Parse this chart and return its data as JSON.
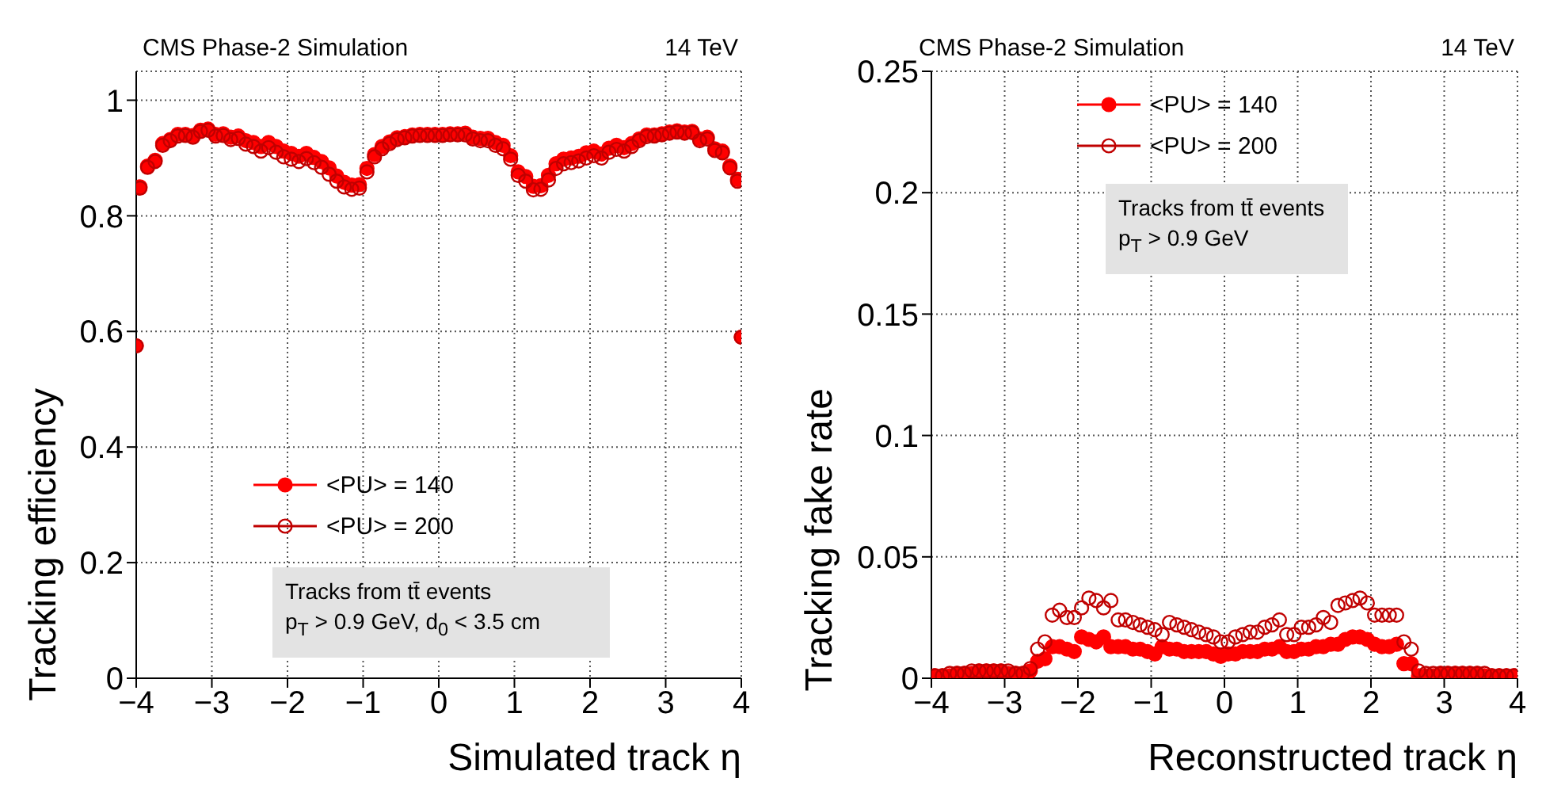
{
  "chart_data": [
    {
      "type": "scatter",
      "xlabel": "Simulated track η",
      "ylabel": "Tracking efficiency",
      "marker": "circle",
      "grid": true,
      "legend": "bottom left",
      "annotations": [
        "CMS Phase-2 Simulation",
        "14 TeV",
        "Tracks from tt̄ events",
        "p$_{T}$ > 0.9 GeV, d$_{0}$ < 3.5 cm"
      ],
      "x": [
        -4,
        -3.95,
        -3.85,
        -3.75,
        -3.65,
        -3.55,
        -3.45,
        -3.35,
        -3.25,
        -3.15,
        -3.05,
        -2.95,
        -2.85,
        -2.75,
        -2.65,
        -2.55,
        -2.45,
        -2.35,
        -2.25,
        -2.15,
        -2.05,
        -1.95,
        -1.85,
        -1.75,
        -1.65,
        -1.55,
        -1.45,
        -1.35,
        -1.25,
        -1.15,
        -1.05,
        -0.95,
        -0.85,
        -0.75,
        -0.65,
        -0.55,
        -0.45,
        -0.35,
        -0.25,
        -0.15,
        -0.05,
        0.05,
        0.15,
        0.25,
        0.35,
        0.45,
        0.55,
        0.65,
        0.75,
        0.85,
        0.95,
        1.05,
        1.15,
        1.25,
        1.35,
        1.45,
        1.55,
        1.65,
        1.75,
        1.85,
        1.95,
        2.05,
        2.15,
        2.25,
        2.35,
        2.45,
        2.55,
        2.65,
        2.75,
        2.85,
        2.95,
        3.05,
        3.15,
        3.25,
        3.35,
        3.45,
        3.55,
        3.65,
        3.75,
        3.85,
        3.95,
        4
      ],
      "xlim": [
        -4,
        4
      ],
      "xticks": [
        {
          "value": -4,
          "label": "−4"
        },
        {
          "value": -3,
          "label": "−3"
        },
        {
          "value": -2,
          "label": "−2"
        },
        {
          "value": -1,
          "label": "−1"
        },
        0,
        1,
        2,
        3,
        4
      ],
      "ylim": [
        0,
        1.05
      ],
      "yticks": [
        0,
        0.2,
        0.4,
        0.6,
        0.8,
        1
      ],
      "series": [
        {
          "name": "<PU> = 140",
          "color": "#ff0000",
          "values": [
            0.575,
            0.85,
            0.886,
            0.896,
            0.925,
            0.932,
            0.941,
            0.941,
            0.939,
            0.948,
            0.95,
            0.941,
            0.942,
            0.936,
            0.938,
            0.93,
            0.927,
            0.92,
            0.927,
            0.92,
            0.912,
            0.908,
            0.903,
            0.908,
            0.901,
            0.894,
            0.883,
            0.869,
            0.858,
            0.853,
            0.854,
            0.882,
            0.906,
            0.92,
            0.928,
            0.935,
            0.937,
            0.94,
            0.941,
            0.941,
            0.941,
            0.941,
            0.942,
            0.942,
            0.943,
            0.936,
            0.934,
            0.934,
            0.927,
            0.922,
            0.904,
            0.876,
            0.868,
            0.851,
            0.852,
            0.87,
            0.89,
            0.898,
            0.9,
            0.903,
            0.909,
            0.912,
            0.907,
            0.917,
            0.922,
            0.918,
            0.925,
            0.933,
            0.94,
            0.94,
            0.942,
            0.945,
            0.947,
            0.945,
            0.946,
            0.933,
            0.936,
            0.916,
            0.912,
            0.886,
            0.863,
            0.59
          ]
        },
        {
          "name": "<PU> = 200",
          "color": "#c00000",
          "values": [
            0.575,
            0.848,
            0.884,
            0.894,
            0.922,
            0.93,
            0.938,
            0.939,
            0.936,
            0.946,
            0.948,
            0.938,
            0.939,
            0.932,
            0.934,
            0.924,
            0.92,
            0.912,
            0.918,
            0.91,
            0.902,
            0.898,
            0.894,
            0.899,
            0.892,
            0.884,
            0.872,
            0.86,
            0.85,
            0.846,
            0.848,
            0.876,
            0.902,
            0.916,
            0.925,
            0.932,
            0.935,
            0.938,
            0.939,
            0.939,
            0.939,
            0.939,
            0.94,
            0.94,
            0.94,
            0.933,
            0.93,
            0.93,
            0.922,
            0.916,
            0.898,
            0.87,
            0.86,
            0.845,
            0.846,
            0.862,
            0.882,
            0.89,
            0.892,
            0.895,
            0.9,
            0.904,
            0.9,
            0.91,
            0.915,
            0.912,
            0.92,
            0.93,
            0.937,
            0.938,
            0.94,
            0.943,
            0.945,
            0.943,
            0.944,
            0.93,
            0.933,
            0.913,
            0.909,
            0.883,
            0.86,
            0.59
          ]
        }
      ]
    },
    {
      "type": "scatter",
      "xlabel": "Reconstructed track η",
      "ylabel": "Tracking fake rate",
      "marker": "circle",
      "grid": true,
      "legend": "top",
      "annotations": [
        "CMS Phase-2 Simulation",
        "14 TeV",
        "Tracks from tt̄ events",
        "p$_{T}$ > 0.9 GeV"
      ],
      "x": [
        -3.95,
        -3.85,
        -3.75,
        -3.65,
        -3.55,
        -3.45,
        -3.35,
        -3.25,
        -3.15,
        -3.05,
        -2.95,
        -2.85,
        -2.75,
        -2.65,
        -2.55,
        -2.45,
        -2.35,
        -2.25,
        -2.15,
        -2.05,
        -1.95,
        -1.85,
        -1.75,
        -1.65,
        -1.55,
        -1.45,
        -1.35,
        -1.25,
        -1.15,
        -1.05,
        -0.95,
        -0.85,
        -0.75,
        -0.65,
        -0.55,
        -0.45,
        -0.35,
        -0.25,
        -0.15,
        -0.05,
        0.05,
        0.15,
        0.25,
        0.35,
        0.45,
        0.55,
        0.65,
        0.75,
        0.85,
        0.95,
        1.05,
        1.15,
        1.25,
        1.35,
        1.45,
        1.55,
        1.65,
        1.75,
        1.85,
        1.95,
        2.05,
        2.15,
        2.25,
        2.35,
        2.45,
        2.55,
        2.65,
        2.75,
        2.85,
        2.95,
        3.05,
        3.15,
        3.25,
        3.35,
        3.45,
        3.55,
        3.65,
        3.75,
        3.85,
        3.95
      ],
      "xlim": [
        -4,
        4
      ],
      "xticks": [
        {
          "value": -4,
          "label": "−4"
        },
        {
          "value": -3,
          "label": "−3"
        },
        {
          "value": -2,
          "label": "−2"
        },
        {
          "value": -1,
          "label": "−1"
        },
        0,
        1,
        2,
        3,
        4
      ],
      "ylim": [
        0,
        0.25
      ],
      "yticks": [
        0,
        0.05,
        0.1,
        0.15,
        0.2,
        0.25
      ],
      "series": [
        {
          "name": "<PU> = 140",
          "color": "#ff0000",
          "values": [
            0.001,
            0.001,
            0.001,
            0.002,
            0.002,
            0.002,
            0.003,
            0.003,
            0.003,
            0.003,
            0.002,
            0.002,
            0.002,
            0.003,
            0.007,
            0.008,
            0.013,
            0.013,
            0.012,
            0.011,
            0.017,
            0.016,
            0.015,
            0.017,
            0.013,
            0.013,
            0.013,
            0.012,
            0.012,
            0.011,
            0.01,
            0.013,
            0.012,
            0.012,
            0.011,
            0.011,
            0.011,
            0.011,
            0.01,
            0.009,
            0.01,
            0.01,
            0.011,
            0.011,
            0.011,
            0.012,
            0.012,
            0.013,
            0.011,
            0.011,
            0.012,
            0.012,
            0.013,
            0.013,
            0.014,
            0.014,
            0.016,
            0.017,
            0.017,
            0.016,
            0.014,
            0.013,
            0.013,
            0.014,
            0.006,
            0.006,
            0.001,
            0.001,
            0.001,
            0.002,
            0.002,
            0.002,
            0.002,
            0.002,
            0.002,
            0.001,
            0.001,
            0.001,
            0.001,
            0.001
          ]
        },
        {
          "name": "<PU> = 200",
          "color": "#c00000",
          "values": [
            0.001,
            0.001,
            0.002,
            0.002,
            0.002,
            0.003,
            0.003,
            0.003,
            0.003,
            0.003,
            0.003,
            0.002,
            0.002,
            0.004,
            0.012,
            0.015,
            0.026,
            0.028,
            0.025,
            0.025,
            0.029,
            0.033,
            0.032,
            0.029,
            0.032,
            0.024,
            0.024,
            0.023,
            0.022,
            0.021,
            0.02,
            0.018,
            0.023,
            0.022,
            0.021,
            0.02,
            0.019,
            0.018,
            0.017,
            0.015,
            0.015,
            0.017,
            0.018,
            0.019,
            0.019,
            0.021,
            0.022,
            0.024,
            0.018,
            0.018,
            0.021,
            0.021,
            0.022,
            0.025,
            0.023,
            0.03,
            0.031,
            0.032,
            0.033,
            0.031,
            0.026,
            0.026,
            0.026,
            0.026,
            0.015,
            0.012,
            0.003,
            0.002,
            0.002,
            0.002,
            0.002,
            0.002,
            0.002,
            0.002,
            0.002,
            0.002,
            0.001,
            0.001,
            0.001,
            0.001
          ]
        }
      ]
    }
  ]
}
